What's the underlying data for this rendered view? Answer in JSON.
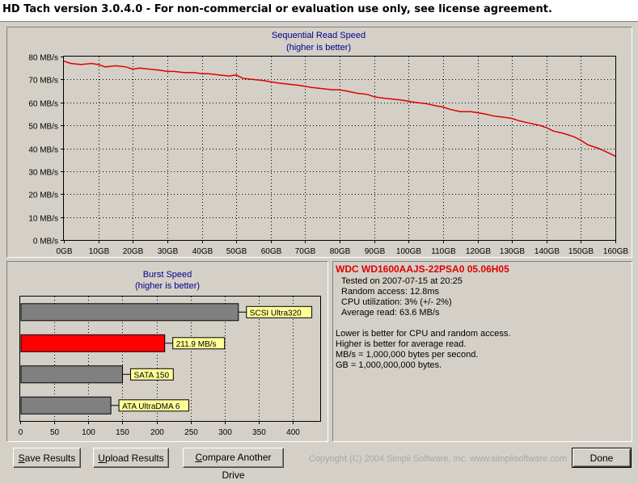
{
  "window": {
    "title": "HD Tach version 3.0.4.0  - For non-commercial or evaluation use only, see license agreement."
  },
  "sequential": {
    "title": "Sequential Read Speed",
    "subtitle": "(higher is better)"
  },
  "burst": {
    "title": "Burst Speed",
    "subtitle": "(higher is better)"
  },
  "info": {
    "drive_name": "WDC WD1600AAJS-22PSA0 05.06H05",
    "tested_on": "Tested on 2007-07-15 at 20:25",
    "random_access": "Random access: 12.8ms",
    "cpu_utilization": "CPU utilization: 3% (+/- 2%)",
    "average_read": "Average read: 63.6 MB/s",
    "note1": "Lower is better for CPU and random access.",
    "note2": "Higher is better for average read.",
    "note3": "MB/s = 1,000,000 bytes per second.",
    "note4": "GB = 1,000,000,000 bytes."
  },
  "buttons": {
    "save": "Save Results",
    "upload": "Upload Results",
    "compare": "Compare Another Drive",
    "done": "Done"
  },
  "copyright": "Copyright (C) 2004 Simpli Software, Inc. www.simplisoftware.com",
  "colors": {
    "accent": "#e00000",
    "reference_bar": "#808080",
    "label_bg": "#ffff99",
    "window_bg": "#d4d0c8"
  },
  "chart_data": [
    {
      "type": "line",
      "title": "Sequential Read Speed",
      "subtitle": "(higher is better)",
      "x_ticks": [
        "0GB",
        "10GB",
        "20GB",
        "30GB",
        "40GB",
        "50GB",
        "60GB",
        "70GB",
        "80GB",
        "90GB",
        "100GB",
        "110GB",
        "120GB",
        "130GB",
        "140GB",
        "150GB",
        "160GB"
      ],
      "y_ticks": [
        "0 MB/s",
        "10 MB/s",
        "20 MB/s",
        "30 MB/s",
        "40 MB/s",
        "50 MB/s",
        "60 MB/s",
        "70 MB/s",
        "80 MB/s"
      ],
      "xlim": [
        0,
        160
      ],
      "ylim": [
        0,
        80
      ],
      "grid": "dashed",
      "series": [
        {
          "color": "#e00000",
          "x": [
            0,
            2,
            5,
            8,
            10,
            12,
            15,
            18,
            20,
            22,
            25,
            28,
            30,
            32,
            35,
            38,
            40,
            42,
            45,
            48,
            50,
            52,
            55,
            58,
            60,
            62,
            65,
            68,
            70,
            72,
            75,
            78,
            80,
            82,
            85,
            88,
            90,
            92,
            95,
            98,
            100,
            102,
            105,
            108,
            110,
            112,
            115,
            118,
            120,
            122,
            125,
            128,
            130,
            132,
            135,
            138,
            140,
            142,
            145,
            148,
            150,
            152,
            155,
            158,
            160
          ],
          "y": [
            78,
            77,
            76.5,
            77,
            76.5,
            75.5,
            76,
            75.5,
            74.5,
            75,
            74.5,
            74,
            73.5,
            73.5,
            73,
            73,
            72.5,
            72.5,
            72,
            71.5,
            72,
            70.5,
            70,
            69.5,
            69,
            68.5,
            68,
            67.5,
            67,
            66.5,
            66,
            65.5,
            65.5,
            65,
            64,
            63.5,
            62.5,
            62,
            61.5,
            61,
            60.5,
            60,
            59.5,
            58.5,
            58,
            57,
            56,
            56,
            55.5,
            55,
            54,
            53.5,
            53,
            52,
            51,
            50,
            49,
            47.5,
            46.5,
            45,
            43.5,
            41.5,
            40,
            38,
            36.5
          ]
        }
      ]
    },
    {
      "type": "bar",
      "orientation": "horizontal",
      "title": "Burst Speed",
      "subtitle": "(higher is better)",
      "categories": [
        "SCSI Ultra320",
        "211.9 MB/s",
        "SATA 150",
        "ATA UltraDMA 6"
      ],
      "values": [
        320,
        211.9,
        150,
        133
      ],
      "bar_colors": [
        "#808080",
        "#ff0000",
        "#808080",
        "#808080"
      ],
      "x_ticks": [
        "0",
        "50",
        "100",
        "150",
        "200",
        "250",
        "300",
        "350",
        "400"
      ],
      "xlim": [
        0,
        440
      ],
      "grid": "dashed"
    }
  ]
}
